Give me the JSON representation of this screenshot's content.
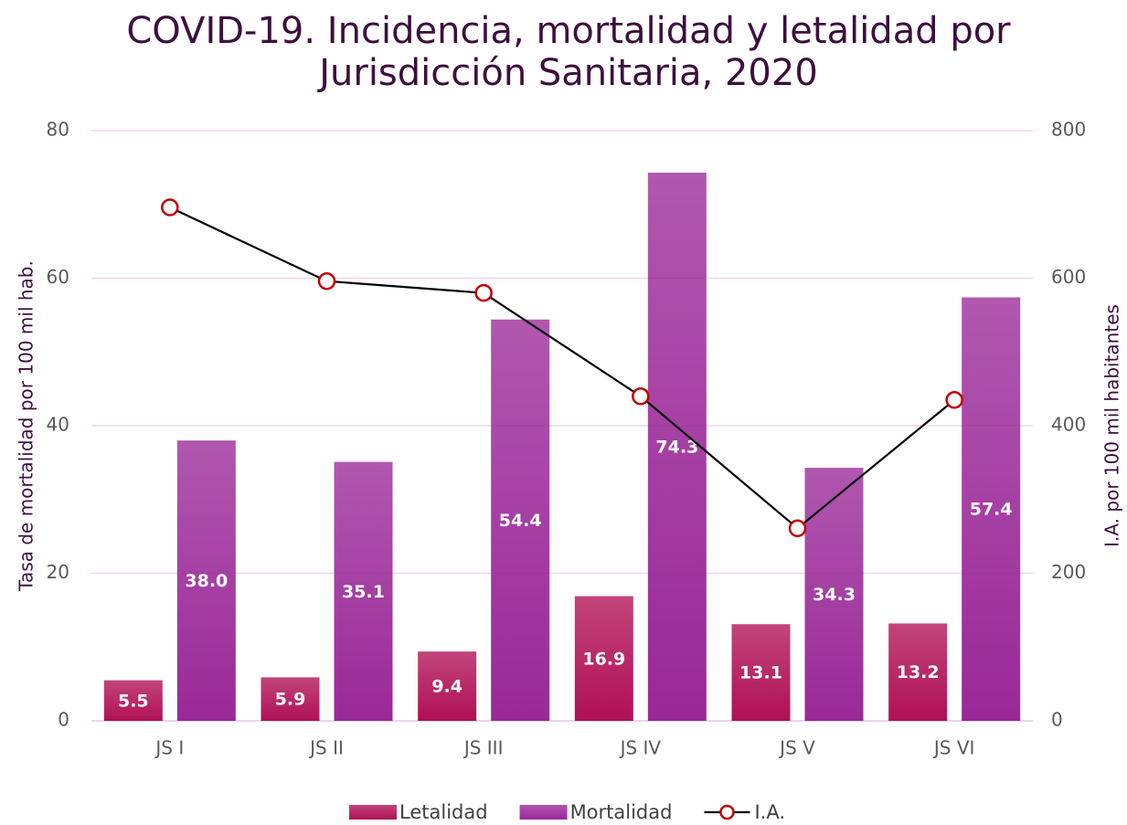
{
  "chart_data": {
    "type": "bar_line",
    "title": [
      "COVID-19. Incidencia, mortalidad y letalidad por",
      "Jurisdicción Sanitaria, 2020"
    ],
    "ylabel": "Tasa de mortalidad por 100 mil hab.",
    "y2label": "I.A. por 100 mil habitantes",
    "categories": [
      "JS I",
      "JS II",
      "JS III",
      "JS IV",
      "JS V",
      "JS VI"
    ],
    "series": [
      {
        "name": "Letalidad",
        "type": "bar",
        "color": "#b01055",
        "values": [
          5.5,
          5.9,
          9.4,
          16.9,
          13.1,
          13.2
        ]
      },
      {
        "name": "Mortalidad",
        "type": "bar",
        "color": "#9a2898",
        "values": [
          38,
          35.1,
          54.4,
          74.3,
          34.3,
          57.4
        ],
        "value_labels": [
          "38.0",
          "35.1",
          "54.4",
          "74.3",
          "34.3",
          "57.4"
        ]
      },
      {
        "name": "I.A.",
        "type": "line",
        "axis": "y2",
        "color": "#000000",
        "marker_color": "#c00000",
        "values": [
          696,
          596,
          580,
          440,
          261,
          435
        ]
      }
    ],
    "ylim": [
      0,
      80
    ],
    "yticks": [
      0,
      20,
      40,
      60,
      80
    ],
    "y2lim": [
      0,
      800
    ],
    "y2ticks": [
      0,
      200,
      400,
      600,
      800
    ],
    "grid": true,
    "legend": "bottom"
  }
}
